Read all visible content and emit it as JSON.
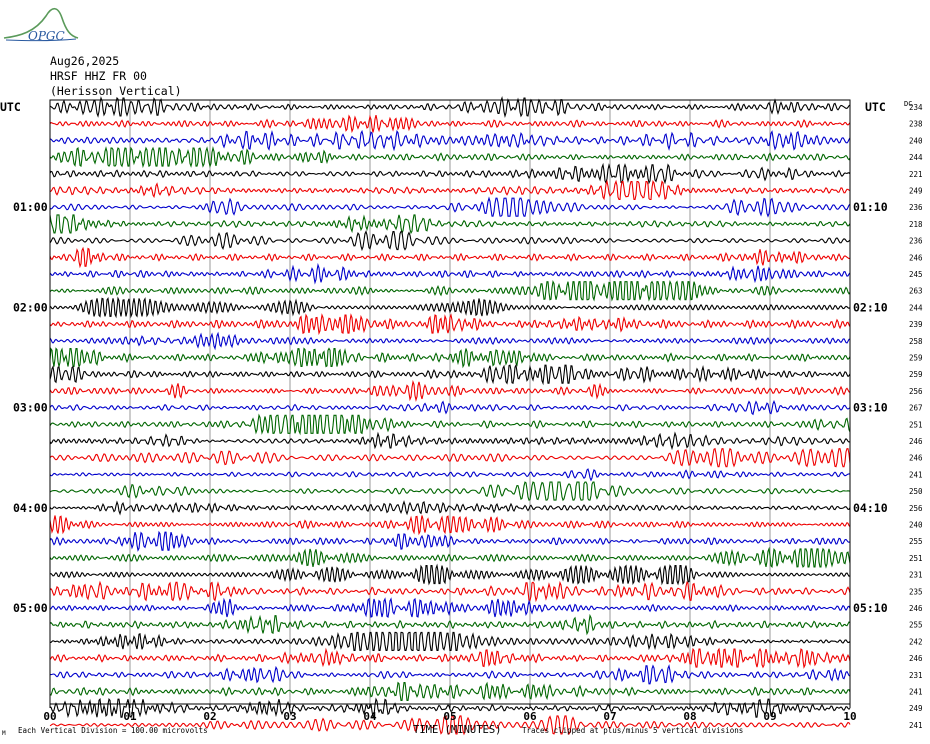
{
  "header": {
    "logo_text": "OPGC",
    "date": "Aug26,2025",
    "station": "HRSF HHZ FR 00",
    "location": "(Herisson Vertical)"
  },
  "footer": {
    "scale_note": "Each Vertical Division =  100.00 microvolts",
    "clip_note": "Traces clipped at plus/minus 5 vertical divisions",
    "corner_mark": "M"
  },
  "chart_data": {
    "type": "line",
    "title": "",
    "xlabel": "TIME (MINUTES)",
    "ylabel": "",
    "xlim": [
      0,
      10
    ],
    "x_ticks": [
      "00",
      "01",
      "02",
      "03",
      "04",
      "05",
      "06",
      "07",
      "08",
      "09",
      "10"
    ],
    "left_axis_title": "UTC",
    "right_axis_title": "UTC",
    "dc_column_title": "DC",
    "left_time_labels": [
      {
        "row": 6,
        "label": "01:00"
      },
      {
        "row": 12,
        "label": "02:00"
      },
      {
        "row": 18,
        "label": "03:00"
      },
      {
        "row": 24,
        "label": "04:00"
      },
      {
        "row": 30,
        "label": "05:00"
      }
    ],
    "right_time_labels": [
      {
        "row": 6,
        "label": "01:10"
      },
      {
        "row": 12,
        "label": "02:10"
      },
      {
        "row": 18,
        "label": "03:10"
      },
      {
        "row": 24,
        "label": "04:10"
      },
      {
        "row": 30,
        "label": "05:10"
      }
    ],
    "trace_colors": [
      "#000000",
      "#ee0000",
      "#0000cc",
      "#006600"
    ],
    "dc_offsets": [
      "234",
      "238",
      "240",
      "244",
      "221",
      "249",
      "236",
      "218",
      "236",
      "246",
      "245",
      "263",
      "244",
      "239",
      "258",
      "259",
      "259",
      "256",
      "267",
      "251",
      "246",
      "246",
      "241",
      "250",
      "256",
      "240",
      "255",
      "251",
      "231",
      "235",
      "246",
      "255",
      "242",
      "246",
      "231",
      "241",
      "249",
      "241"
    ],
    "grid": true
  }
}
